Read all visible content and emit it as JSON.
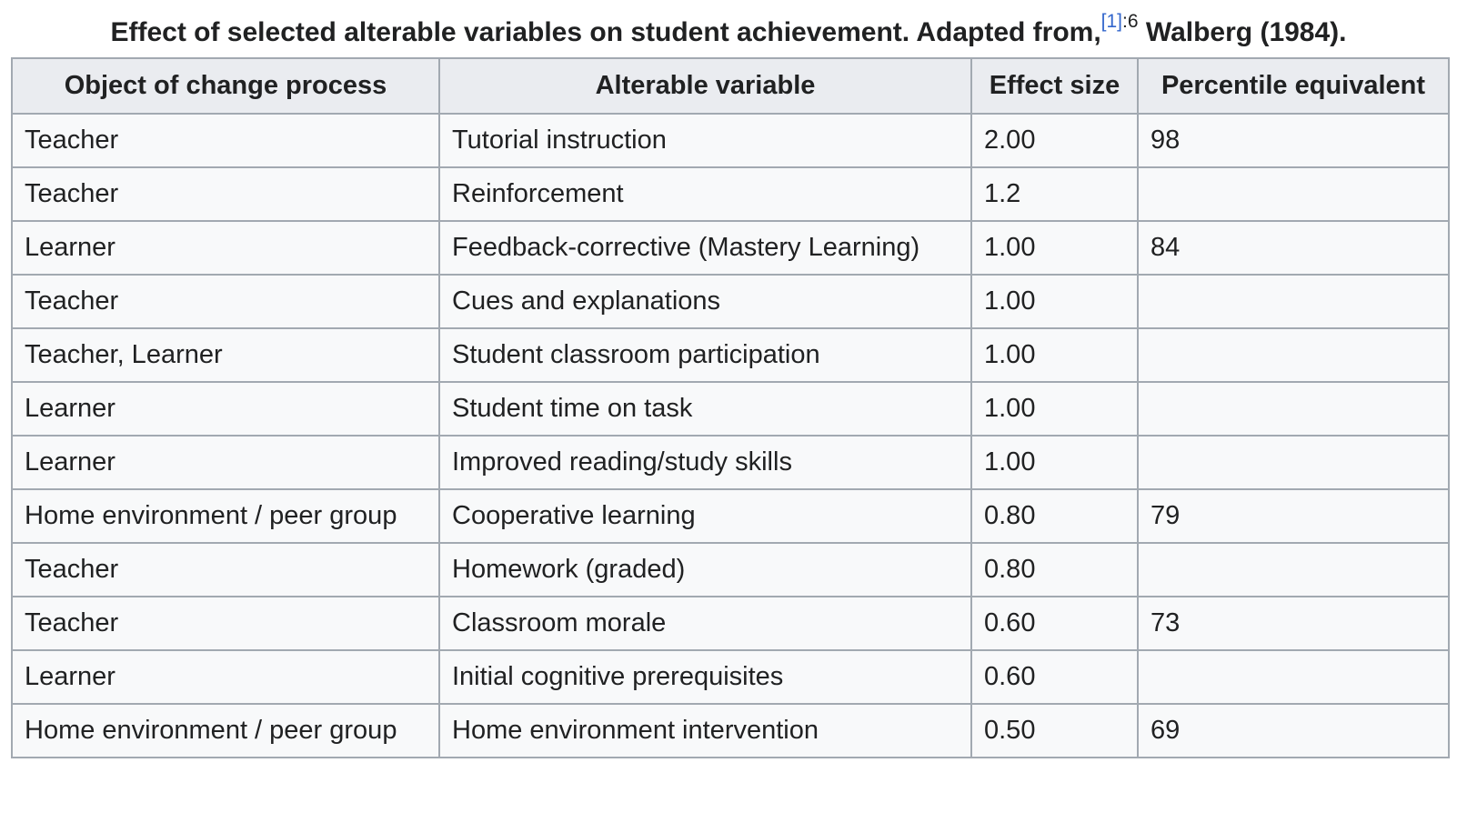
{
  "caption": {
    "text_before": "Effect of selected alterable variables on student achievement. Adapted from,",
    "ref_label": "[1]",
    "page_ref": ":6",
    "text_after": " Walberg (1984)."
  },
  "table": {
    "headers": [
      "Object of change process",
      "Alterable variable",
      "Effect size",
      "Percentile equivalent"
    ],
    "rows": [
      [
        "Teacher",
        "Tutorial instruction",
        "2.00",
        "98"
      ],
      [
        "Teacher",
        "Reinforcement",
        "1.2",
        ""
      ],
      [
        "Learner",
        "Feedback-corrective (Mastery Learning)",
        "1.00",
        "84"
      ],
      [
        "Teacher",
        "Cues and explanations",
        "1.00",
        ""
      ],
      [
        "Teacher, Learner",
        "Student classroom participation",
        "1.00",
        ""
      ],
      [
        "Learner",
        "Student time on task",
        "1.00",
        ""
      ],
      [
        "Learner",
        "Improved reading/study skills",
        "1.00",
        ""
      ],
      [
        "Home environment / peer group",
        "Cooperative learning",
        "0.80",
        "79"
      ],
      [
        "Teacher",
        "Homework (graded)",
        "0.80",
        ""
      ],
      [
        "Teacher",
        "Classroom morale",
        "0.60",
        "73"
      ],
      [
        "Learner",
        "Initial cognitive prerequisites",
        "0.60",
        ""
      ],
      [
        "Home environment / peer group",
        "Home environment intervention",
        "0.50",
        "69"
      ]
    ]
  },
  "colors": {
    "link": "#3366cc",
    "header_bg": "#eaecf0",
    "cell_bg": "#f8f9fa",
    "border": "#a2a9b1",
    "text": "#202122"
  }
}
